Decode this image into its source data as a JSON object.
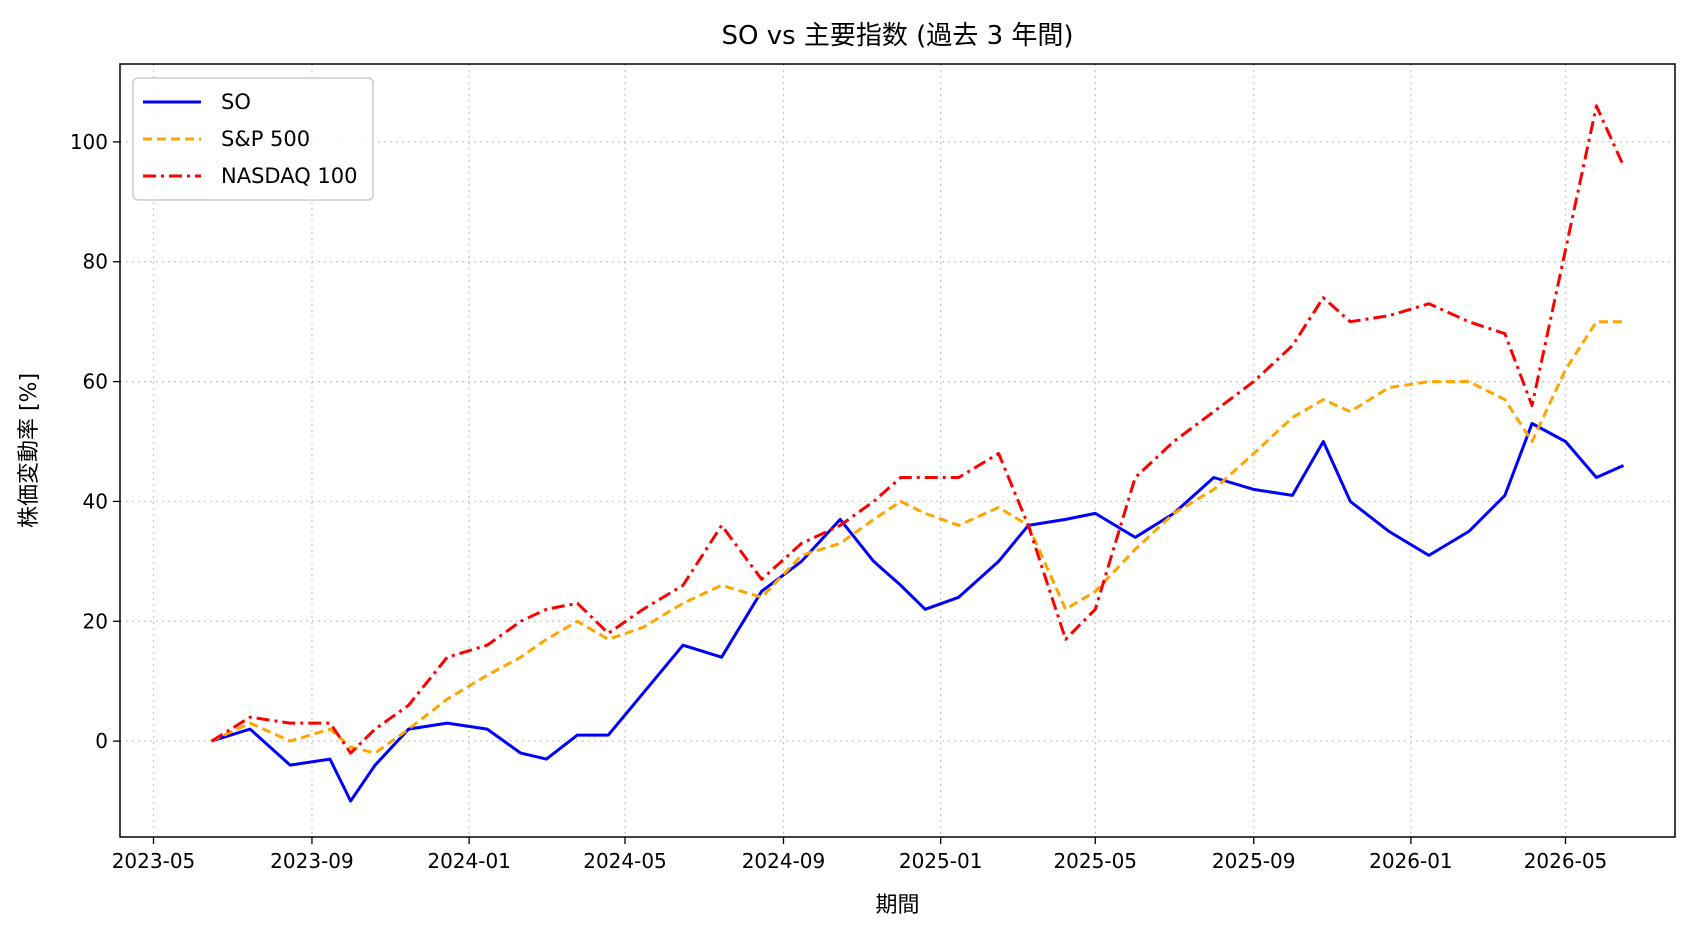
{
  "chart_data": {
    "type": "line",
    "title": "SO vs 主要指数 (過去 3 年間)",
    "xlabel": "期間",
    "ylabel": "株価変動率 [%]",
    "x_ticks": [
      "2023-05",
      "2023-09",
      "2024-01",
      "2024-05",
      "2024-09",
      "2025-01",
      "2025-05",
      "2025-09",
      "2026-01",
      "2026-05"
    ],
    "y_ticks": [
      0,
      20,
      40,
      60,
      80,
      100
    ],
    "xlim": [
      "2023-04-05",
      "2026-07-25"
    ],
    "ylim": [
      -16,
      113
    ],
    "grid": true,
    "legend_position": "top-left",
    "x": [
      "2023-06-15",
      "2023-07-15",
      "2023-08-15",
      "2023-09-15",
      "2023-10-01",
      "2023-10-20",
      "2023-11-15",
      "2023-12-15",
      "2024-01-15",
      "2024-02-10",
      "2024-03-01",
      "2024-03-25",
      "2024-04-18",
      "2024-05-15",
      "2024-06-15",
      "2024-07-15",
      "2024-08-15",
      "2024-09-15",
      "2024-10-15",
      "2024-11-10",
      "2024-12-01",
      "2024-12-20",
      "2025-01-15",
      "2025-02-15",
      "2025-03-10",
      "2025-04-08",
      "2025-05-01",
      "2025-06-01",
      "2025-07-01",
      "2025-08-01",
      "2025-09-01",
      "2025-10-01",
      "2025-10-25",
      "2025-11-15",
      "2025-12-15",
      "2026-01-15",
      "2026-02-15",
      "2026-03-15",
      "2026-04-05",
      "2026-05-01",
      "2026-05-25",
      "2026-06-15"
    ],
    "series": [
      {
        "name": "SO",
        "color": "#0000ff",
        "style": "solid",
        "values": [
          0,
          2,
          -4,
          -3,
          -10,
          -4,
          2,
          3,
          2,
          -2,
          -3,
          1,
          1,
          8,
          16,
          14,
          25,
          30,
          37,
          30,
          26,
          22,
          24,
          30,
          36,
          37,
          38,
          34,
          38,
          44,
          42,
          41,
          50,
          40,
          35,
          31,
          35,
          41,
          53,
          50,
          44,
          46
        ]
      },
      {
        "name": "S&P 500",
        "color": "#ffa500",
        "style": "dashed",
        "values": [
          0,
          3,
          0,
          2,
          -1,
          -2,
          2,
          7,
          11,
          14,
          17,
          20,
          17,
          19,
          23,
          26,
          24,
          31,
          33,
          37,
          40,
          38,
          36,
          39,
          36,
          22,
          25,
          32,
          38,
          42,
          48,
          54,
          57,
          55,
          59,
          60,
          60,
          57,
          50,
          62,
          70,
          70
        ]
      },
      {
        "name": "NASDAQ 100",
        "color": "#ff0000",
        "style": "dashdot",
        "values": [
          0,
          4,
          3,
          3,
          -2,
          2,
          6,
          14,
          16,
          20,
          22,
          23,
          18,
          22,
          26,
          36,
          27,
          33,
          36,
          40,
          44,
          44,
          44,
          48,
          36,
          17,
          22,
          44,
          50,
          55,
          60,
          66,
          74,
          70,
          71,
          73,
          70,
          68,
          56,
          82,
          106,
          96
        ]
      }
    ]
  }
}
